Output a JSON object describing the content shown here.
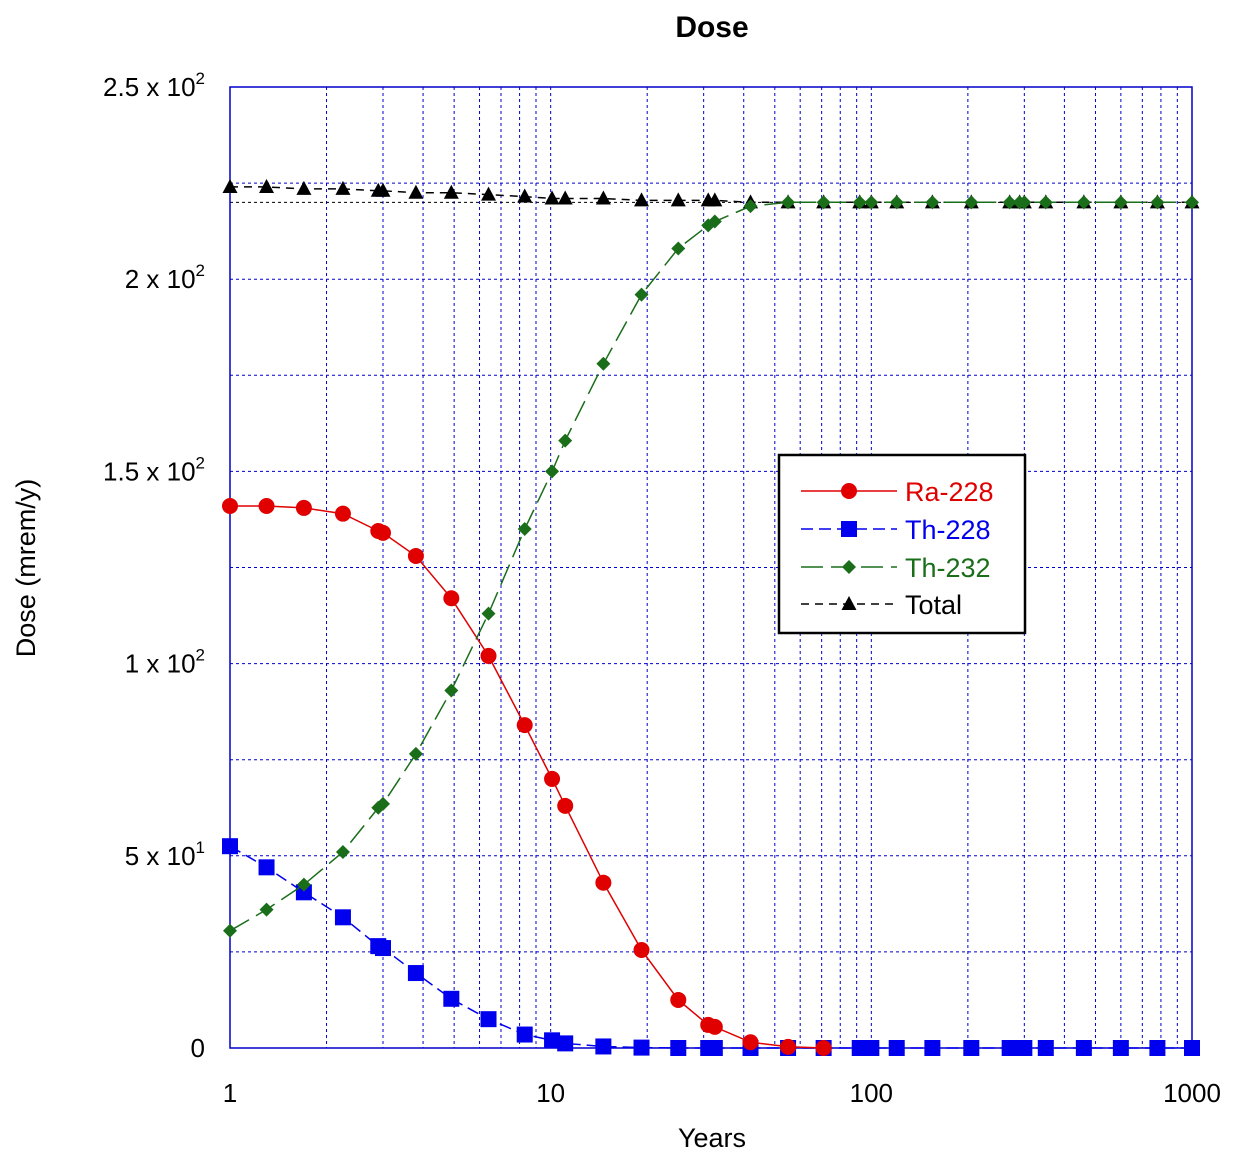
{
  "chart_data": {
    "type": "line",
    "title": "Dose",
    "xlabel": "Years",
    "ylabel": "Dose (mrem/y)",
    "xscale": "log",
    "xlim": [
      1,
      1000
    ],
    "ylim": [
      0,
      250
    ],
    "grid": true,
    "legend_position": "right",
    "x_ticks": [
      {
        "value": 1,
        "label": "1"
      },
      {
        "value": 10,
        "label": "10"
      },
      {
        "value": 100,
        "label": "100"
      },
      {
        "value": 1000,
        "label": "1000"
      }
    ],
    "y_ticks": [
      {
        "value": 0,
        "mant": "0",
        "exp": ""
      },
      {
        "value": 50,
        "mant": "5 x 10",
        "exp": "1"
      },
      {
        "value": 100,
        "mant": "1 x 10",
        "exp": "2"
      },
      {
        "value": 150,
        "mant": "1.5 x 10",
        "exp": "2"
      },
      {
        "value": 200,
        "mant": "2 x 10",
        "exp": "2"
      },
      {
        "value": 250,
        "mant": "2.5 x 10",
        "exp": "2"
      }
    ],
    "series": [
      {
        "name": "Ra-228",
        "color": "#e00000",
        "marker": "circle",
        "dash": "",
        "x": [
          1,
          1.3,
          1.7,
          2.25,
          2.9,
          3.0,
          3.8,
          4.9,
          6.4,
          8.3,
          10.1,
          11.1,
          14.6,
          19.2,
          25,
          31,
          32.5,
          42,
          55,
          71
        ],
        "y": [
          141,
          141,
          140.5,
          139,
          134.5,
          134,
          128,
          117,
          102,
          84,
          70,
          63,
          43,
          25.5,
          12.5,
          6,
          5.5,
          1.5,
          0.3,
          0
        ]
      },
      {
        "name": "Th-228",
        "color": "#0000ee",
        "marker": "square",
        "dash": "12,6",
        "x": [
          1,
          1.3,
          1.7,
          2.25,
          2.9,
          3.0,
          3.8,
          4.9,
          6.4,
          8.3,
          10.1,
          11.1,
          14.6,
          19.2,
          25,
          31,
          32.5,
          42,
          55,
          71,
          92,
          100,
          120,
          155,
          205,
          270,
          290,
          300,
          350,
          460,
          600,
          780,
          1000
        ],
        "y": [
          52.5,
          47,
          40.5,
          34,
          26.5,
          26,
          19.5,
          12.8,
          7.5,
          3.5,
          2,
          1.2,
          0.4,
          0.1,
          0,
          0,
          0,
          0,
          0,
          0,
          0,
          0,
          0,
          0,
          0,
          0,
          0,
          0,
          0,
          0,
          0,
          0,
          0
        ]
      },
      {
        "name": "Th-232",
        "color": "#1a6e1a",
        "marker": "diamond",
        "dash": "22,8",
        "x": [
          1,
          1.3,
          1.7,
          2.25,
          2.9,
          3.0,
          3.8,
          4.9,
          6.4,
          8.3,
          10.1,
          11.1,
          14.6,
          19.2,
          25,
          31,
          32.5,
          42,
          55,
          71,
          92,
          100,
          120,
          155,
          205,
          270,
          290,
          300,
          350,
          460,
          600,
          780,
          1000
        ],
        "y": [
          30.5,
          36,
          42.5,
          51,
          62.5,
          63.5,
          76.5,
          93,
          113,
          135,
          150,
          158,
          178,
          196,
          208,
          214,
          215,
          219,
          220,
          220,
          220,
          220,
          220,
          220,
          220,
          220,
          220,
          220,
          220,
          220,
          220,
          220,
          220
        ]
      },
      {
        "name": "Total",
        "color": "#000000",
        "marker": "triangle",
        "dash": "8,6",
        "x": [
          1,
          1.3,
          1.7,
          2.25,
          2.9,
          3.0,
          3.8,
          4.9,
          6.4,
          8.3,
          10.1,
          11.1,
          14.6,
          19.2,
          25,
          31,
          32.5,
          42,
          55,
          71,
          92,
          100,
          120,
          155,
          205,
          270,
          290,
          300,
          350,
          460,
          600,
          780,
          1000
        ],
        "y": [
          224,
          224,
          223.5,
          223.5,
          223,
          223,
          222.5,
          222.5,
          222,
          221.5,
          221,
          221,
          221,
          220.5,
          220.5,
          220.5,
          220.5,
          220,
          220,
          220,
          220,
          220,
          220,
          220,
          220,
          220,
          220,
          220,
          220,
          220,
          220,
          220,
          220
        ]
      }
    ]
  }
}
